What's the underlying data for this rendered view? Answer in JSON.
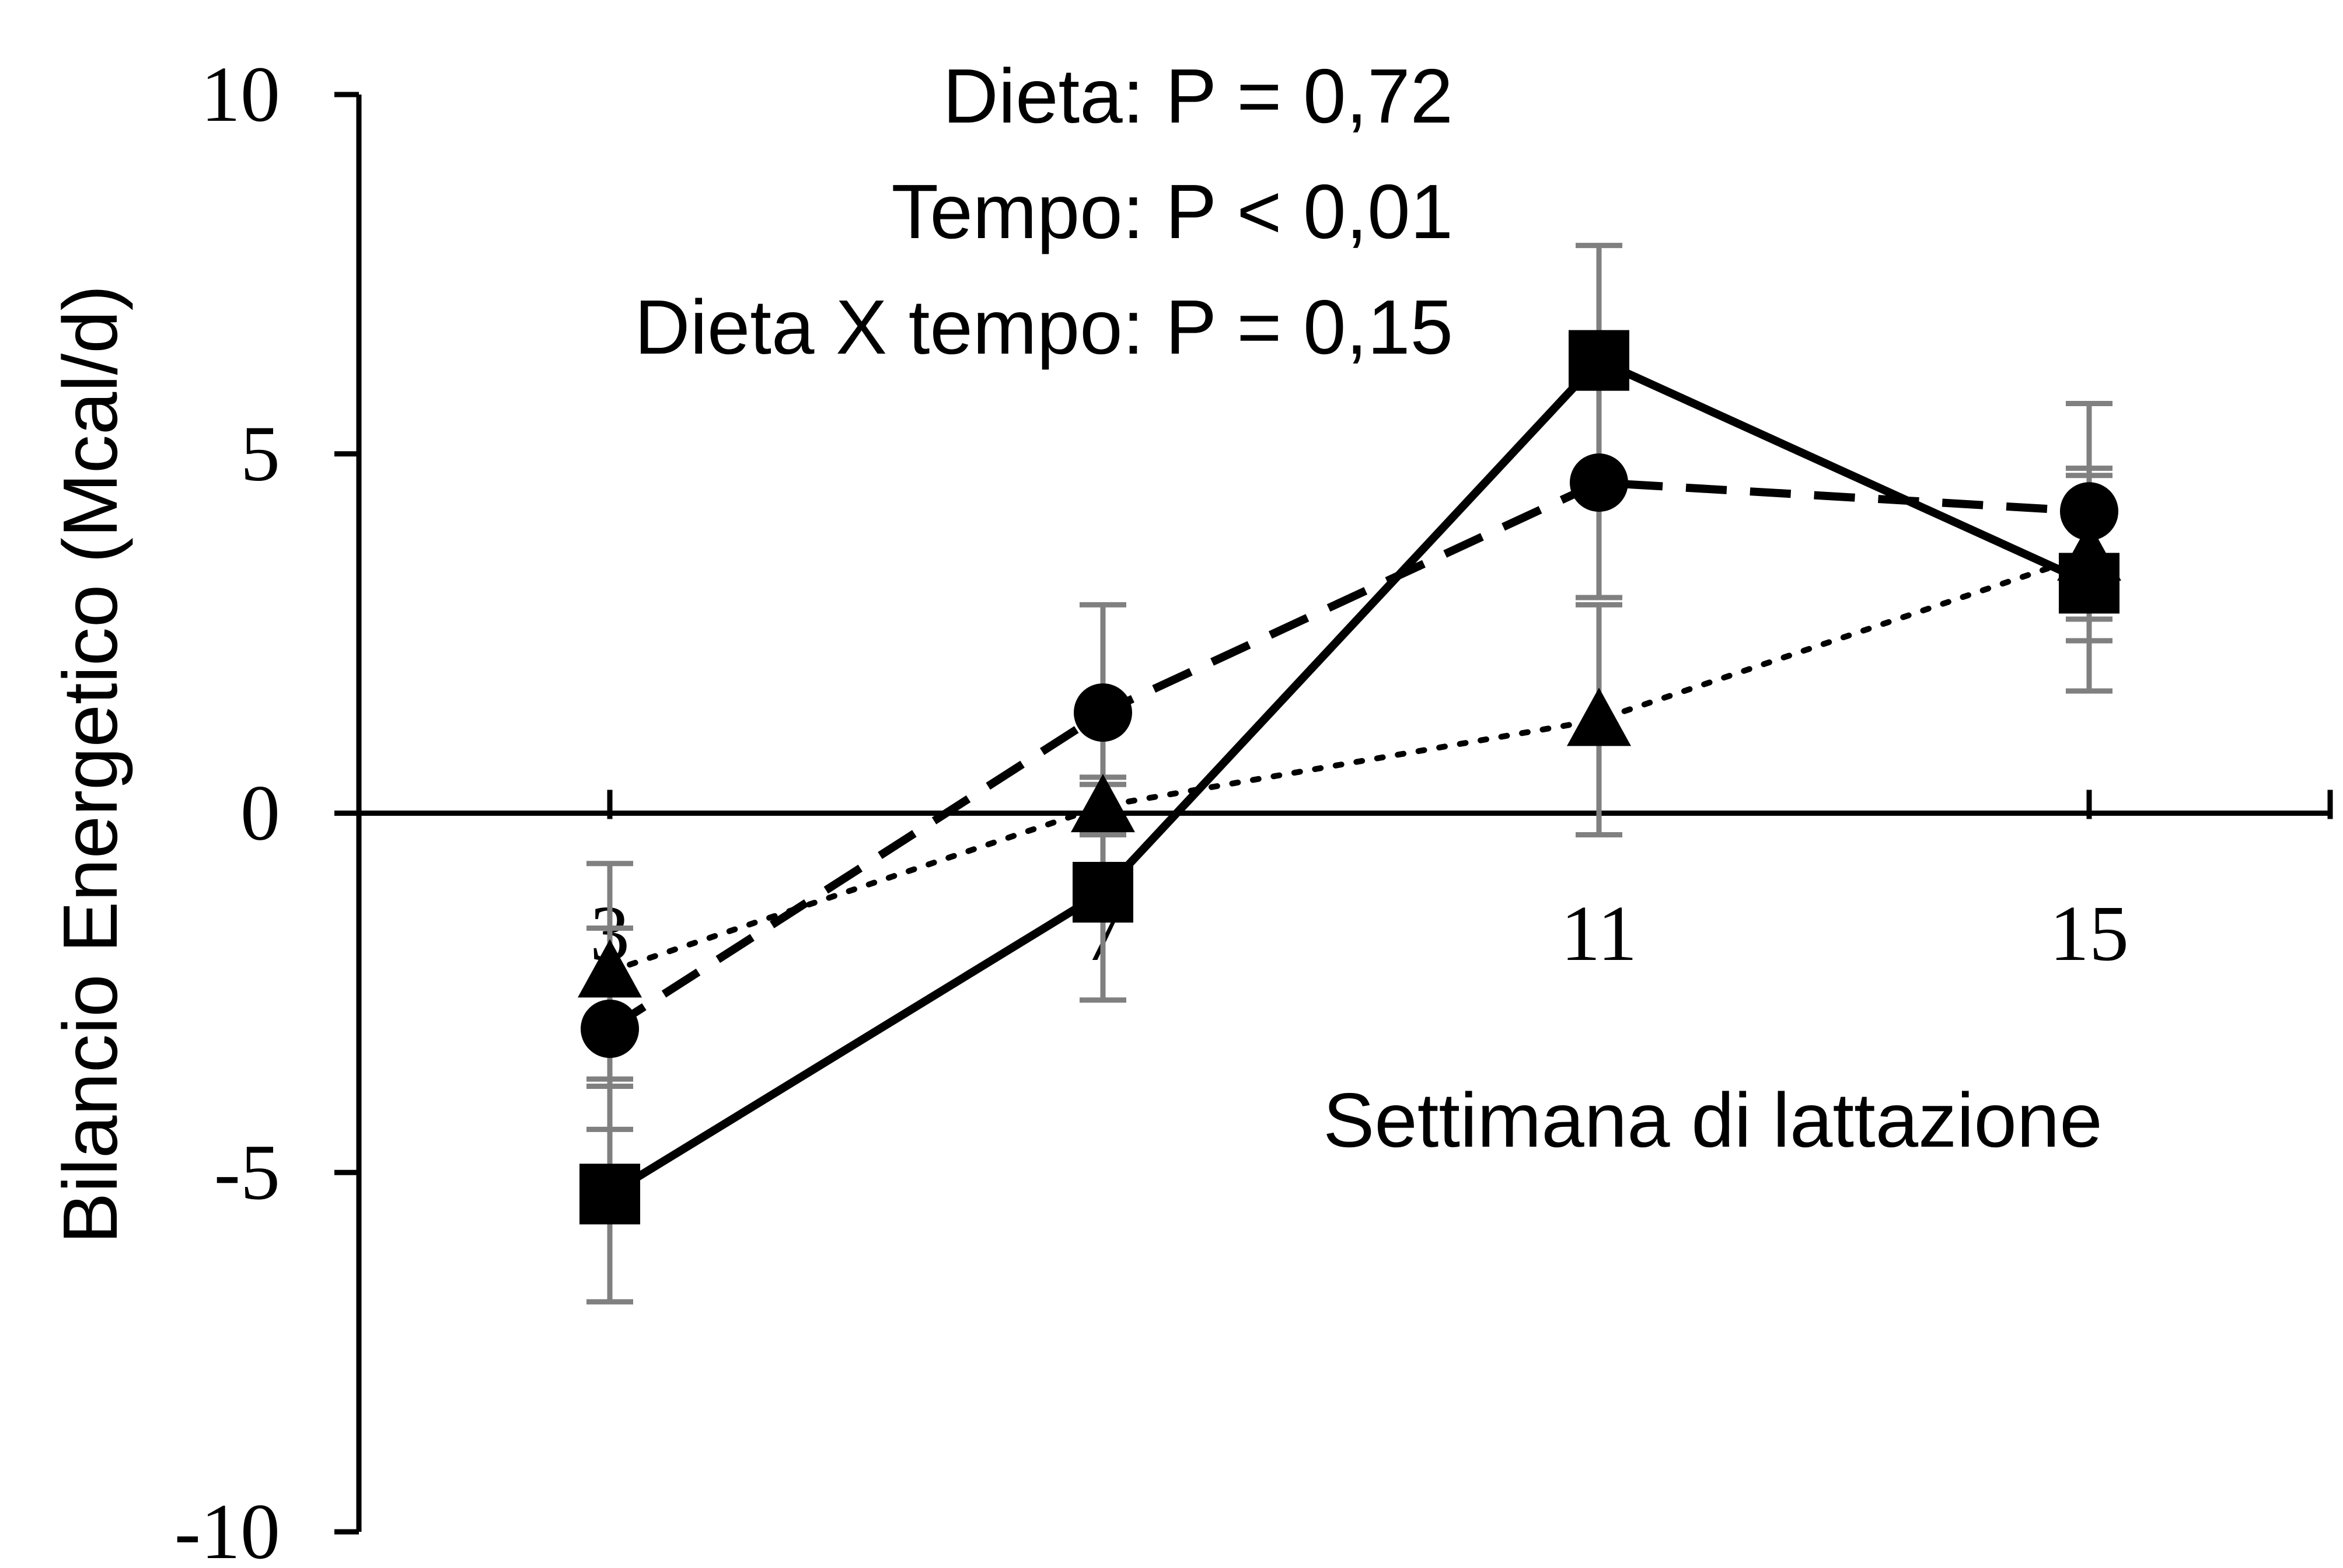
{
  "chart_data": {
    "type": "line",
    "xlabel": "Settimana di lattazione",
    "ylabel": "Bilancio Energetico (Mcal/d)",
    "x": [
      3,
      7,
      11,
      15
    ],
    "ylim": [
      -10,
      10
    ],
    "y_ticks": [
      "10",
      "5",
      "0",
      "-5",
      "-10"
    ],
    "x_ticks": [
      "3",
      "7",
      "11",
      "15"
    ],
    "annotations": [
      "Dieta: P = 0,72",
      "Tempo: P < 0,01",
      "Dieta X tempo: P = 0,15"
    ],
    "grid": false,
    "legend": "none",
    "series": [
      {
        "marker": "square",
        "line_style": "solid",
        "values": [
          -5.3,
          -1.1,
          6.3,
          3.2
        ],
        "error": [
          1.5,
          1.5,
          1.6,
          1.5
        ]
      },
      {
        "marker": "circle",
        "line_style": "dashed",
        "values": [
          -3.0,
          1.4,
          4.6,
          4.2
        ],
        "error": [
          1.4,
          1.5,
          1.6,
          1.5
        ]
      },
      {
        "marker": "triangle",
        "line_style": "dotted",
        "values": [
          -2.2,
          0.1,
          1.3,
          3.6
        ],
        "error": [
          1.5,
          0.4,
          1.6,
          1.2
        ]
      }
    ],
    "colors": {
      "line": "#000000",
      "error_bar": "#808080"
    }
  }
}
